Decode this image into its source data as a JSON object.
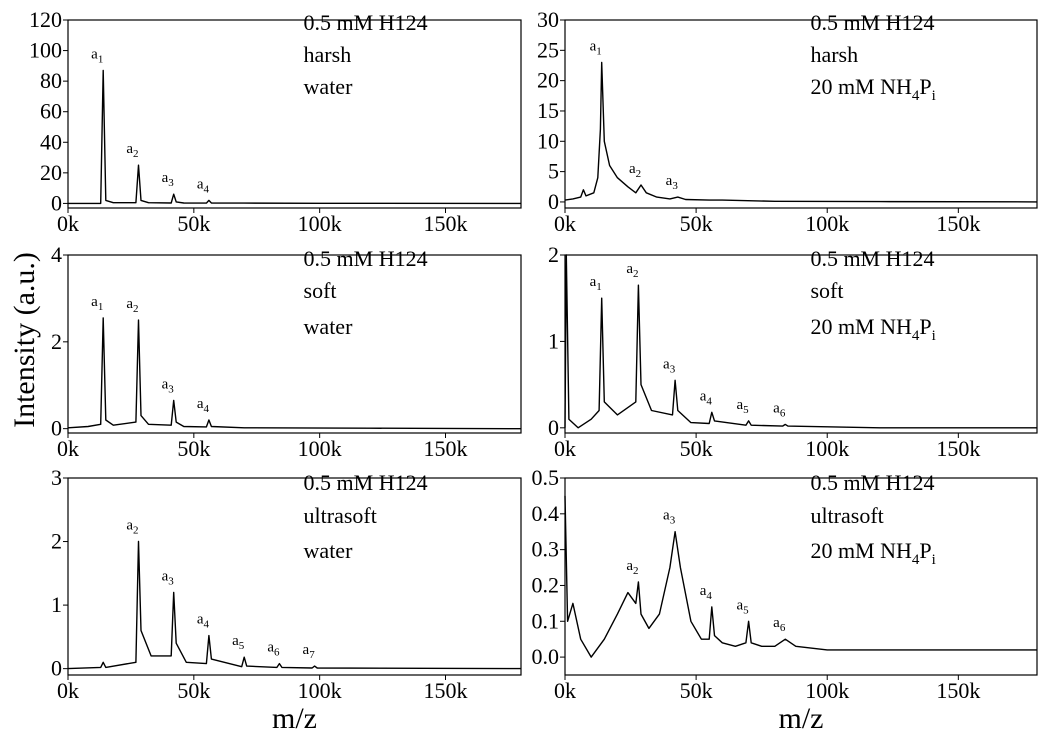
{
  "ylabel": "Intensity (a.u.)",
  "chart_data": [
    {
      "type": "line",
      "color": "#000000",
      "xlim": [
        0,
        180000
      ],
      "ylim": [
        -3,
        120
      ],
      "xticks": [
        {
          "value": 0,
          "label": "0k"
        },
        {
          "value": 50000,
          "label": "50k"
        },
        {
          "value": 100000,
          "label": "100k"
        },
        {
          "value": 150000,
          "label": "150k"
        }
      ],
      "yticks": [
        0,
        20,
        40,
        60,
        80,
        100,
        120
      ],
      "x": [
        0,
        5000,
        13000,
        14000,
        15000,
        18000,
        27000,
        28000,
        29000,
        32000,
        41000,
        42000,
        43000,
        46000,
        55000,
        56000,
        57000,
        70000,
        100000,
        180000
      ],
      "values": [
        0,
        0,
        0,
        87,
        2,
        0.5,
        0.5,
        25,
        2,
        0.5,
        0.3,
        6,
        1,
        0.3,
        0.2,
        2,
        0.3,
        0.2,
        0.1,
        0
      ],
      "peak_labels": [
        {
          "x": 14000,
          "label": "a",
          "sub": "1"
        },
        {
          "x": 28000,
          "label": "a",
          "sub": "2"
        },
        {
          "x": 42000,
          "label": "a",
          "sub": "3"
        },
        {
          "x": 56000,
          "label": "a",
          "sub": "4"
        }
      ],
      "condition_lines": [
        [
          {
            "text": "0.5 mM H124"
          }
        ],
        [
          {
            "text": "harsh"
          }
        ],
        [
          {
            "text": "water"
          }
        ]
      ]
    },
    {
      "type": "line",
      "color": "#000000",
      "xlim": [
        0,
        180000
      ],
      "ylim": [
        -0.1,
        4
      ],
      "xticks": [
        {
          "value": 0,
          "label": "0k"
        },
        {
          "value": 50000,
          "label": "50k"
        },
        {
          "value": 100000,
          "label": "100k"
        },
        {
          "value": 150000,
          "label": "150k"
        }
      ],
      "yticks": [
        0,
        2,
        4
      ],
      "x": [
        0,
        8000,
        13000,
        14000,
        15000,
        18000,
        27000,
        28000,
        29000,
        32000,
        41000,
        42000,
        43000,
        46000,
        55000,
        56000,
        57000,
        70000,
        120000,
        180000
      ],
      "values": [
        0.02,
        0.05,
        0.1,
        2.55,
        0.2,
        0.08,
        0.15,
        2.5,
        0.3,
        0.1,
        0.08,
        0.65,
        0.15,
        0.05,
        0.04,
        0.2,
        0.05,
        0.02,
        0.01,
        0
      ],
      "peak_labels": [
        {
          "x": 14000,
          "label": "a",
          "sub": "1"
        },
        {
          "x": 28000,
          "label": "a",
          "sub": "2"
        },
        {
          "x": 42000,
          "label": "a",
          "sub": "3"
        },
        {
          "x": 56000,
          "label": "a",
          "sub": "4"
        }
      ],
      "condition_lines": [
        [
          {
            "text": "0.5 mM H124"
          }
        ],
        [
          {
            "text": "soft"
          }
        ],
        [
          {
            "text": "water"
          }
        ]
      ]
    },
    {
      "type": "line",
      "color": "#000000",
      "xlim": [
        0,
        180000
      ],
      "ylim": [
        -0.1,
        3
      ],
      "xlabel": "m/z",
      "xticks": [
        {
          "value": 0,
          "label": "0k"
        },
        {
          "value": 50000,
          "label": "50k"
        },
        {
          "value": 100000,
          "label": "100k"
        },
        {
          "value": 150000,
          "label": "150k"
        }
      ],
      "yticks": [
        0,
        1,
        2,
        3
      ],
      "x": [
        0,
        13000,
        14000,
        15000,
        27000,
        28000,
        29000,
        33000,
        41000,
        42000,
        43000,
        47000,
        55000,
        56000,
        57000,
        69000,
        70000,
        71000,
        83000,
        84000,
        85000,
        97000,
        98000,
        99000,
        180000
      ],
      "values": [
        0,
        0.02,
        0.1,
        0.02,
        0.1,
        2.0,
        0.6,
        0.2,
        0.2,
        1.2,
        0.4,
        0.1,
        0.08,
        0.52,
        0.15,
        0.03,
        0.18,
        0.04,
        0.02,
        0.08,
        0.02,
        0.01,
        0.04,
        0.01,
        0
      ],
      "peak_labels": [
        {
          "x": 28000,
          "label": "a",
          "sub": "2"
        },
        {
          "x": 42000,
          "label": "a",
          "sub": "3"
        },
        {
          "x": 56000,
          "label": "a",
          "sub": "4"
        },
        {
          "x": 70000,
          "label": "a",
          "sub": "5"
        },
        {
          "x": 84000,
          "label": "a",
          "sub": "6"
        },
        {
          "x": 98000,
          "label": "a",
          "sub": "7"
        }
      ],
      "condition_lines": [
        [
          {
            "text": "0.5 mM H124"
          }
        ],
        [
          {
            "text": "ultrasoft"
          }
        ],
        [
          {
            "text": "water"
          }
        ]
      ]
    },
    {
      "type": "line",
      "color": "#000000",
      "xlim": [
        0,
        180000
      ],
      "ylim": [
        -1,
        30
      ],
      "xticks": [
        {
          "value": 0,
          "label": "0k"
        },
        {
          "value": 50000,
          "label": "50k"
        },
        {
          "value": 100000,
          "label": "100k"
        },
        {
          "value": 150000,
          "label": "150k"
        }
      ],
      "yticks": [
        0,
        5,
        10,
        15,
        20,
        25,
        30
      ],
      "x": [
        0,
        3000,
        6000,
        7000,
        8000,
        11000,
        12500,
        13500,
        14000,
        15000,
        17000,
        20000,
        24000,
        27000,
        29000,
        31000,
        35000,
        40000,
        43000,
        46000,
        55000,
        60000,
        80000,
        120000,
        180000
      ],
      "values": [
        0.3,
        0.5,
        0.8,
        2,
        1,
        1.5,
        4,
        12,
        23,
        10,
        6,
        4,
        2.5,
        1.5,
        2.8,
        1.5,
        0.8,
        0.5,
        0.8,
        0.4,
        0.3,
        0.3,
        0.1,
        0.05,
        0
      ],
      "peak_labels": [
        {
          "x": 14000,
          "label": "a",
          "sub": "1"
        },
        {
          "x": 29000,
          "label": "a",
          "sub": "2"
        },
        {
          "x": 43000,
          "label": "a",
          "sub": "3"
        }
      ],
      "condition_lines": [
        [
          {
            "text": "0.5 mM H124"
          }
        ],
        [
          {
            "text": "harsh"
          }
        ],
        [
          {
            "text": "20 mM NH"
          },
          {
            "sub": "4"
          },
          {
            "text": "P"
          },
          {
            "sub": "i"
          }
        ]
      ]
    },
    {
      "type": "line",
      "color": "#000000",
      "xlim": [
        0,
        180000
      ],
      "ylim": [
        -0.06,
        2
      ],
      "xticks": [
        {
          "value": 0,
          "label": "0k"
        },
        {
          "value": 50000,
          "label": "50k"
        },
        {
          "value": 100000,
          "label": "100k"
        },
        {
          "value": 150000,
          "label": "150k"
        }
      ],
      "yticks": [
        0,
        1,
        2
      ],
      "x": [
        0,
        500,
        1500,
        5000,
        10000,
        13000,
        14000,
        15000,
        20000,
        27000,
        28000,
        29000,
        33000,
        41000,
        42000,
        43000,
        48000,
        55000,
        56000,
        57000,
        69000,
        70000,
        71000,
        83000,
        84000,
        85000,
        120000,
        180000
      ],
      "values": [
        0,
        2,
        0.1,
        0,
        0.1,
        0.2,
        1.5,
        0.3,
        0.15,
        0.3,
        1.65,
        0.5,
        0.2,
        0.15,
        0.55,
        0.2,
        0.06,
        0.05,
        0.18,
        0.08,
        0.03,
        0.08,
        0.03,
        0.02,
        0.04,
        0.02,
        0,
        0
      ],
      "peak_labels": [
        {
          "x": 14000,
          "label": "a",
          "sub": "1"
        },
        {
          "x": 28000,
          "label": "a",
          "sub": "2"
        },
        {
          "x": 42000,
          "label": "a",
          "sub": "3"
        },
        {
          "x": 56000,
          "label": "a",
          "sub": "4"
        },
        {
          "x": 70000,
          "label": "a",
          "sub": "5"
        },
        {
          "x": 84000,
          "label": "a",
          "sub": "6"
        }
      ],
      "condition_lines": [
        [
          {
            "text": "0.5 mM H124"
          }
        ],
        [
          {
            "text": "soft"
          }
        ],
        [
          {
            "text": "20 mM NH"
          },
          {
            "sub": "4"
          },
          {
            "text": "P"
          },
          {
            "sub": "i"
          }
        ]
      ]
    },
    {
      "type": "line",
      "color": "#000000",
      "xlim": [
        0,
        180000
      ],
      "ylim": [
        -0.05,
        0.5
      ],
      "xlabel": "m/z",
      "xticks": [
        {
          "value": 0,
          "label": "0k"
        },
        {
          "value": 50000,
          "label": "50k"
        },
        {
          "value": 100000,
          "label": "100k"
        },
        {
          "value": 150000,
          "label": "150k"
        }
      ],
      "yticks": [
        {
          "value": 0,
          "label": "0.0"
        },
        0.1,
        0.2,
        0.3,
        0.4,
        0.5
      ],
      "x": [
        0,
        1000,
        3000,
        6000,
        10000,
        15000,
        20000,
        24000,
        27000,
        28000,
        29000,
        32000,
        36000,
        40000,
        42000,
        44000,
        48000,
        52000,
        55000,
        56000,
        57000,
        60000,
        65000,
        69000,
        70000,
        71000,
        75000,
        80000,
        84000,
        88000,
        100000,
        120000,
        140000,
        160000,
        180000
      ],
      "values": [
        0.45,
        0.1,
        0.15,
        0.05,
        0.0,
        0.05,
        0.12,
        0.18,
        0.15,
        0.21,
        0.12,
        0.08,
        0.12,
        0.25,
        0.35,
        0.25,
        0.1,
        0.05,
        0.05,
        0.14,
        0.06,
        0.04,
        0.03,
        0.04,
        0.1,
        0.04,
        0.03,
        0.03,
        0.05,
        0.03,
        0.02,
        0.02,
        0.02,
        0.02,
        0.02
      ],
      "peak_labels": [
        {
          "x": 28000,
          "label": "a",
          "sub": "2"
        },
        {
          "x": 42000,
          "label": "a",
          "sub": "3"
        },
        {
          "x": 56000,
          "label": "a",
          "sub": "4"
        },
        {
          "x": 70000,
          "label": "a",
          "sub": "5"
        },
        {
          "x": 84000,
          "label": "a",
          "sub": "6"
        }
      ],
      "condition_lines": [
        [
          {
            "text": "0.5 mM H124"
          }
        ],
        [
          {
            "text": "ultrasoft"
          }
        ],
        [
          {
            "text": "20 mM NH"
          },
          {
            "sub": "4"
          },
          {
            "text": "P"
          },
          {
            "sub": "i"
          }
        ]
      ]
    }
  ]
}
